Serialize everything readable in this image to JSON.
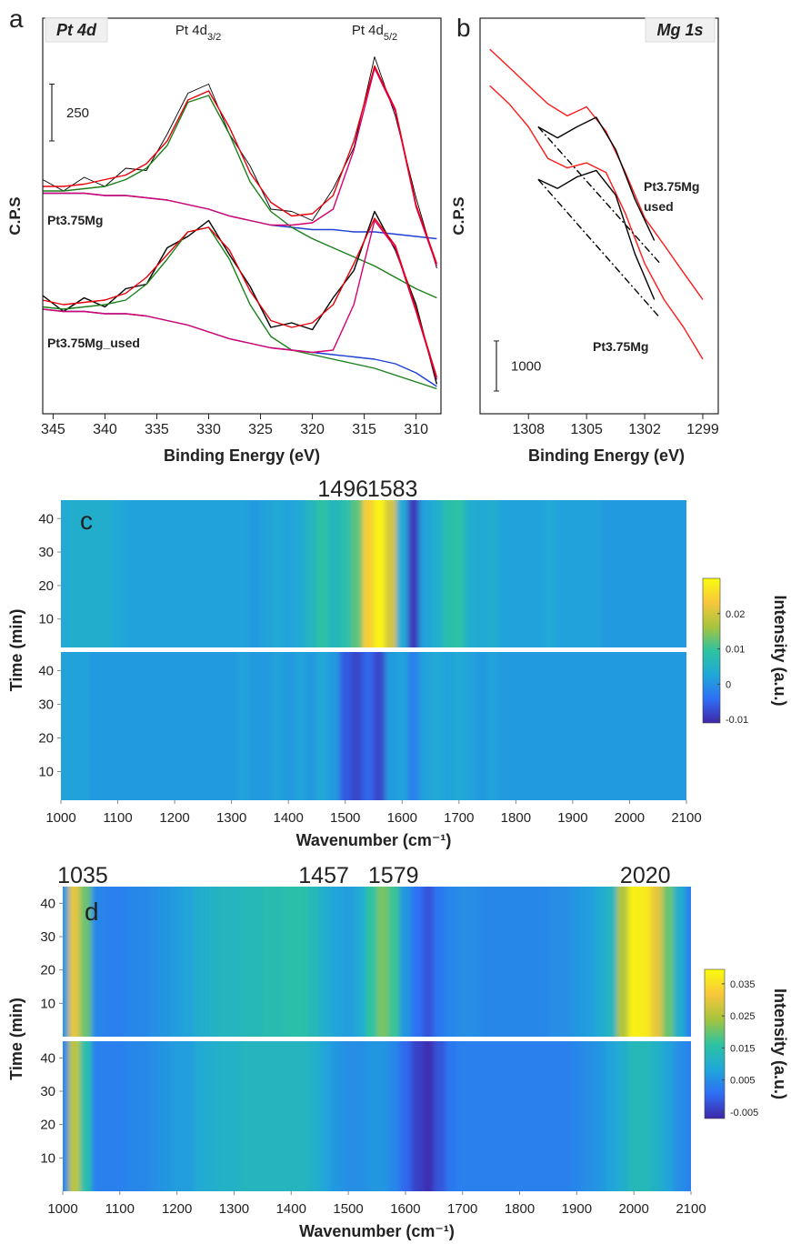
{
  "chart_data": [
    {
      "type": "line",
      "panel": "a",
      "title": "Pt 4d",
      "xlabel": "Binding Energy (eV)",
      "ylabel": "C.P.S",
      "xlim": [
        346,
        307.6
      ],
      "xticks": [
        345,
        340,
        335,
        330,
        325,
        320,
        315,
        310
      ],
      "ylim": [
        0,
        1740
      ],
      "scale_bar": 250,
      "annotations": [
        {
          "text": "Pt 4d",
          "sub": "3/2",
          "x": 331
        },
        {
          "text": "Pt 4d",
          "sub": "5/2",
          "x": 314
        }
      ],
      "sample_labels": [
        [
          "Pt3.75Mg"
        ],
        [
          "Pt3.75Mg_used"
        ]
      ],
      "x": [
        346,
        344,
        342,
        340,
        338,
        336,
        334,
        332,
        330,
        328,
        326,
        324,
        322,
        320,
        318,
        316,
        314,
        312,
        310,
        308
      ],
      "series": [
        {
          "color": "#000000",
          "values": [
            1030,
            980,
            1040,
            1000,
            1080,
            1070,
            1230,
            1410,
            1450,
            1230,
            1090,
            900,
            890,
            850,
            990,
            1170,
            1570,
            1310,
            950,
            640
          ]
        },
        {
          "color": "#1f3fd6",
          "values": [
            970,
            970,
            970,
            960,
            960,
            950,
            940,
            920,
            900,
            870,
            850,
            830,
            820,
            810,
            810,
            800,
            800,
            790,
            780,
            770
          ]
        },
        {
          "color": "#1a7f1a",
          "values": [
            980,
            980,
            990,
            1000,
            1030,
            1080,
            1180,
            1370,
            1400,
            1230,
            1020,
            890,
            820,
            770,
            730,
            690,
            650,
            600,
            550,
            510
          ]
        },
        {
          "color": "#d6006f",
          "values": [
            970,
            970,
            970,
            960,
            960,
            950,
            940,
            920,
            900,
            870,
            850,
            830,
            830,
            840,
            900,
            1160,
            1520,
            1330,
            910,
            650
          ]
        },
        {
          "color": "#e8000b",
          "values": [
            1000,
            1000,
            1010,
            1030,
            1050,
            1100,
            1200,
            1380,
            1420,
            1260,
            1060,
            930,
            870,
            880,
            960,
            1200,
            1530,
            1340,
            920,
            660
          ]
        },
        {
          "color": "#000000",
          "values": [
            520,
            450,
            510,
            470,
            550,
            570,
            730,
            780,
            850,
            700,
            560,
            380,
            400,
            370,
            510,
            630,
            890,
            720,
            480,
            130
          ]
        },
        {
          "color": "#1f3fd6",
          "values": [
            460,
            450,
            450,
            440,
            440,
            430,
            410,
            390,
            360,
            330,
            310,
            290,
            280,
            270,
            260,
            250,
            240,
            220,
            180,
            120
          ]
        },
        {
          "color": "#1a7f1a",
          "values": [
            470,
            460,
            470,
            480,
            500,
            570,
            680,
            800,
            820,
            680,
            480,
            340,
            280,
            260,
            240,
            220,
            200,
            170,
            140,
            110
          ]
        },
        {
          "color": "#d6006f",
          "values": [
            460,
            450,
            450,
            440,
            440,
            430,
            410,
            390,
            360,
            330,
            310,
            290,
            280,
            270,
            280,
            480,
            850,
            730,
            450,
            150
          ]
        },
        {
          "color": "#e8000b",
          "values": [
            500,
            480,
            490,
            500,
            530,
            600,
            700,
            800,
            820,
            720,
            540,
            410,
            380,
            400,
            480,
            660,
            860,
            740,
            460,
            160
          ]
        }
      ]
    },
    {
      "type": "line",
      "panel": "b",
      "title": "Mg 1s",
      "xlabel": "Binding Energy (eV)",
      "ylabel": "C.P.S",
      "xlim": [
        1310.5,
        1298.2
      ],
      "xticks": [
        1308,
        1305,
        1302,
        1299
      ],
      "ylim": [
        0,
        7900
      ],
      "scale_bar": 1000,
      "sample_labels": [
        [
          "Pt3.75Mg",
          "used"
        ],
        [
          "Pt3.75Mg"
        ]
      ],
      "x": [
        1310,
        1309,
        1308,
        1307,
        1306,
        1305,
        1304,
        1303,
        1302,
        1301,
        1300,
        1299
      ],
      "series": [
        {
          "color": "#ff1a1a",
          "values": [
            7280,
            6920,
            6550,
            6190,
            5950,
            6130,
            5640,
            4820,
            3910,
            3370,
            2820,
            2280
          ]
        },
        {
          "color": "#ff1a1a",
          "values": [
            6550,
            6190,
            5730,
            5100,
            4910,
            5010,
            4820,
            4000,
            3000,
            2280,
            1730,
            1090
          ]
        },
        {
          "color": "#000000",
          "x": [
            1307.5,
            1301.2
          ],
          "style": "dashdot",
          "values": [
            5730,
            3000
          ]
        },
        {
          "color": "#000000",
          "x": [
            1307.5,
            1301.2
          ],
          "style": "dashdot",
          "values": [
            4680,
            1910
          ]
        },
        {
          "color": "#000000",
          "x": [
            1307.5,
            1306.5,
            1305.5,
            1304.5,
            1303.5,
            1302.5,
            1301.5
          ],
          "values": [
            5730,
            5510,
            5730,
            5920,
            5280,
            4280,
            3460
          ]
        },
        {
          "color": "#000000",
          "x": [
            1307.5,
            1306.5,
            1305.5,
            1304.5,
            1303.5,
            1302.5,
            1301.5
          ],
          "values": [
            4680,
            4500,
            4730,
            4860,
            4370,
            3190,
            2280
          ]
        }
      ]
    },
    {
      "type": "heatmap",
      "panel": "c",
      "xlabel": "Wavenumber (cm⁻¹)",
      "ylabel": "Time (min)",
      "clabel": "Intensity (a.u.)",
      "xlim": [
        1000,
        2100
      ],
      "xticks": [
        1000,
        1100,
        1200,
        1300,
        1400,
        1500,
        1600,
        1700,
        1800,
        1900,
        2000,
        2100
      ],
      "ylim": [
        1.5,
        45.5
      ],
      "yticks": [
        10,
        20,
        30,
        40
      ],
      "clim": [
        -0.011,
        0.03
      ],
      "cticks": [
        0.02,
        0.01,
        0,
        -0.01
      ],
      "colormap": [
        "#3e26a8",
        "#2f6ff5",
        "#1fa8d8",
        "#2ec3a0",
        "#a8c43d",
        "#f7c73c",
        "#f9fb0e"
      ],
      "peak_labels": [
        1496,
        1583
      ],
      "x": [
        1000,
        1020,
        1040,
        1060,
        1080,
        1100,
        1120,
        1140,
        1160,
        1180,
        1200,
        1220,
        1240,
        1260,
        1280,
        1300,
        1320,
        1340,
        1360,
        1380,
        1400,
        1420,
        1440,
        1460,
        1480,
        1500,
        1520,
        1540,
        1560,
        1580,
        1600,
        1620,
        1640,
        1660,
        1680,
        1700,
        1720,
        1740,
        1760,
        1780,
        1800,
        1820,
        1840,
        1860,
        1880,
        1900,
        1920,
        1940,
        1960,
        1980,
        2000,
        2020,
        2040,
        2060,
        2080,
        2100
      ],
      "rows": [
        {
          "values": [
            0.003,
            0.004,
            0.004,
            0.004,
            0.004,
            0.003,
            0.002,
            0.002,
            0.002,
            0.002,
            0.002,
            0.002,
            0.002,
            0.002,
            0.002,
            0.002,
            0.002,
            0.001,
            0.002,
            0.003,
            0.002,
            0.003,
            0.006,
            0.009,
            0.006,
            0.008,
            0.012,
            0.024,
            0.029,
            0.02,
            0.003,
            -0.009,
            0.002,
            0.004,
            0.008,
            0.009,
            0.004,
            0.003,
            0.004,
            0.002,
            0.002,
            0.002,
            0.002,
            0.003,
            0.002,
            0.002,
            0.002,
            0.002,
            0.001,
            0.001,
            0.001,
            0.001,
            0.001,
            0.001,
            0.001,
            0.001
          ]
        },
        {
          "values": [
            0.002,
            0.002,
            0.002,
            0.001,
            0.001,
            0.001,
            0.001,
            0.001,
            0.001,
            0.001,
            0.001,
            0.001,
            0.001,
            0.001,
            0.001,
            0.001,
            0.002,
            0.001,
            0.001,
            0.002,
            0.001,
            0.002,
            0.001,
            0.003,
            0.001,
            -0.006,
            -0.008,
            -0.005,
            -0.008,
            0.001,
            0.002,
            -0.002,
            0.002,
            0.003,
            0.002,
            0.003,
            0.002,
            0.001,
            0.002,
            0.001,
            0.001,
            0.001,
            0.001,
            0.001,
            0.001,
            0.001,
            0.001,
            0.001,
            0.001,
            0.001,
            0.001,
            0.001,
            0.001,
            0.001,
            0.001,
            0.001
          ]
        }
      ]
    },
    {
      "type": "heatmap",
      "panel": "d",
      "xlabel": "Wavenumber (cm⁻¹)",
      "ylabel": "Time (min)",
      "clabel": "Intensity (a.u.)",
      "xlim": [
        1000,
        2100
      ],
      "xticks": [
        1000,
        1100,
        1200,
        1300,
        1400,
        1500,
        1600,
        1700,
        1800,
        1900,
        2000,
        2100
      ],
      "ylim": [
        0,
        45
      ],
      "yticks": [
        10,
        20,
        30,
        40
      ],
      "clim": [
        -0.007,
        0.0395
      ],
      "cticks": [
        0.035,
        0.025,
        0.015,
        0.005,
        -0.005
      ],
      "colormap": [
        "#3e26a8",
        "#2f6ff5",
        "#1fa8d8",
        "#2ec3a0",
        "#a8c43d",
        "#f7c73c",
        "#f9fb0e"
      ],
      "peak_labels": [
        1035,
        1457,
        1579,
        2020
      ],
      "x": [
        1000,
        1020,
        1040,
        1060,
        1080,
        1100,
        1120,
        1140,
        1160,
        1180,
        1200,
        1220,
        1240,
        1260,
        1280,
        1300,
        1320,
        1340,
        1360,
        1380,
        1400,
        1420,
        1440,
        1460,
        1480,
        1500,
        1520,
        1540,
        1560,
        1580,
        1600,
        1620,
        1640,
        1660,
        1680,
        1700,
        1720,
        1740,
        1760,
        1780,
        1800,
        1820,
        1840,
        1860,
        1880,
        1900,
        1920,
        1940,
        1960,
        1980,
        2000,
        2020,
        2040,
        2060,
        2080,
        2100
      ],
      "rows": [
        {
          "values": [
            0.006,
            0.03,
            0.02,
            0.004,
            0.003,
            0.003,
            0.004,
            0.004,
            0.005,
            0.006,
            0.007,
            0.008,
            0.01,
            0.011,
            0.012,
            0.012,
            0.013,
            0.013,
            0.014,
            0.014,
            0.015,
            0.015,
            0.013,
            0.01,
            0.008,
            0.007,
            0.009,
            0.016,
            0.021,
            0.017,
            0.006,
            0.001,
            -0.002,
            0.002,
            0.004,
            0.005,
            0.005,
            0.004,
            0.004,
            0.004,
            0.004,
            0.004,
            0.004,
            0.005,
            0.005,
            0.006,
            0.007,
            0.009,
            0.012,
            0.025,
            0.038,
            0.037,
            0.03,
            0.02,
            0.01,
            0.003
          ]
        },
        {
          "values": [
            0.004,
            0.026,
            0.015,
            0.003,
            0.003,
            0.003,
            0.004,
            0.004,
            0.005,
            0.006,
            0.007,
            0.007,
            0.009,
            0.01,
            0.011,
            0.011,
            0.012,
            0.012,
            0.012,
            0.012,
            0.012,
            0.012,
            0.011,
            0.008,
            0.006,
            0.005,
            0.005,
            0.006,
            0.006,
            0.004,
            0,
            -0.004,
            -0.006,
            -0.002,
            0.002,
            0.003,
            0.003,
            0.003,
            0.003,
            0.003,
            0.003,
            0.003,
            0.003,
            0.003,
            0.003,
            0.004,
            0.005,
            0.006,
            0.008,
            0.01,
            0.013,
            0.013,
            0.011,
            0.008,
            0.005,
            0.003
          ]
        }
      ]
    }
  ]
}
